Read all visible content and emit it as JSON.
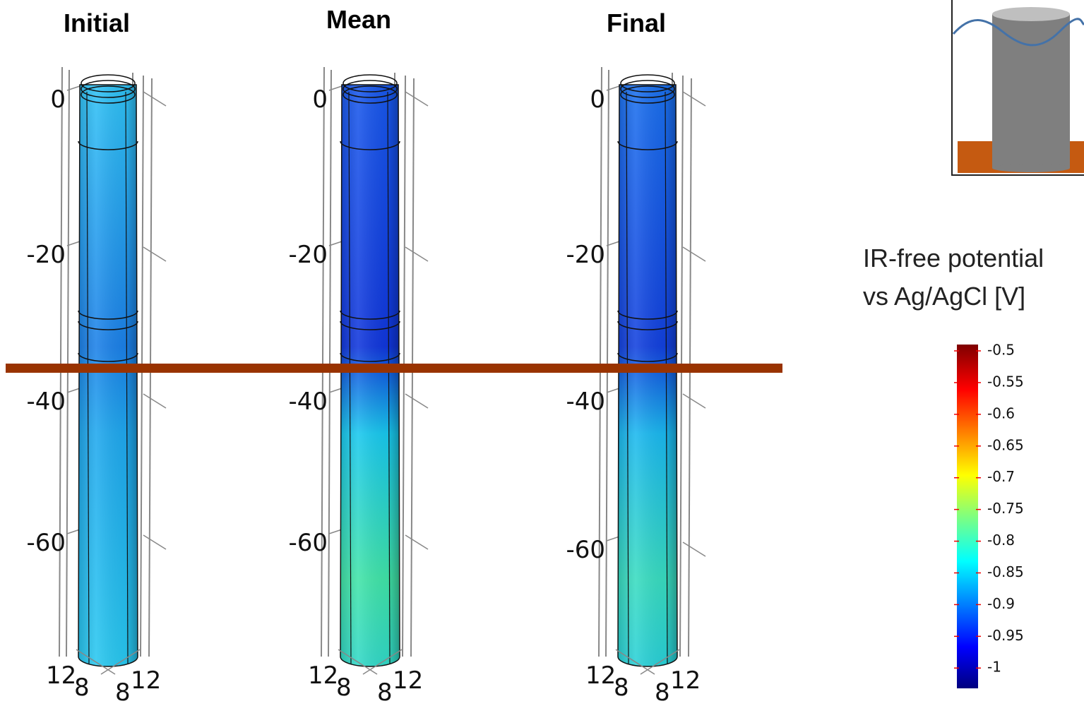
{
  "panels": [
    {
      "title": "Initial",
      "zticks": [
        0,
        -20,
        -40,
        -60
      ],
      "x_labels": [
        12,
        8
      ],
      "y_labels": [
        8,
        12
      ]
    },
    {
      "title": "Mean",
      "zticks": [
        0,
        -20,
        -40,
        -60
      ],
      "x_labels": [
        12,
        8
      ],
      "y_labels": [
        8,
        12
      ]
    },
    {
      "title": "Final",
      "zticks": [
        0,
        -20,
        -40,
        -60
      ],
      "x_labels": [
        12,
        8
      ],
      "y_labels": [
        8,
        12
      ]
    }
  ],
  "colorbar": {
    "title": [
      "IR-free potential",
      "vs Ag/AgCl [V]"
    ],
    "range": [
      -1.032,
      -0.49
    ],
    "ticks": [
      -0.5,
      -0.55,
      -0.6,
      -0.65,
      -0.7,
      -0.75,
      -0.8,
      -0.85,
      -0.9,
      -0.95,
      -1
    ]
  }
}
